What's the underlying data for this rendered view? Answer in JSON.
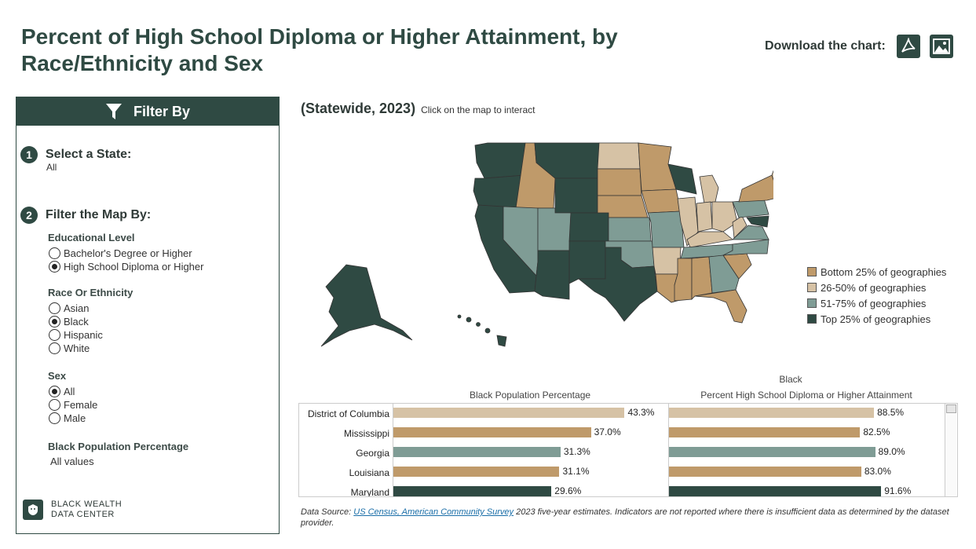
{
  "header": {
    "title": "Percent of High School Diploma or Higher Attainment, by Race/Ethnicity and Sex",
    "download_label": "Download the chart:",
    "download_icons": [
      "pdf-icon",
      "image-icon"
    ]
  },
  "sidebar": {
    "heading": "Filter By",
    "heading_icon": "funnel-icon",
    "step1": {
      "number": "1",
      "label": "Select a State:",
      "value": "All"
    },
    "step2": {
      "number": "2",
      "label": "Filter the Map By:"
    },
    "educational_level": {
      "label": "Educational Level",
      "options": [
        {
          "label": "Bachelor's Degree or Higher",
          "selected": false
        },
        {
          "label": "High School Diploma or Higher",
          "selected": true
        }
      ]
    },
    "race": {
      "label": "Race Or Ethnicity",
      "options": [
        {
          "label": "Asian",
          "selected": false
        },
        {
          "label": "Black",
          "selected": true
        },
        {
          "label": "Hispanic",
          "selected": false
        },
        {
          "label": "White",
          "selected": false
        }
      ]
    },
    "sex": {
      "label": "Sex",
      "options": [
        {
          "label": "All",
          "selected": true
        },
        {
          "label": "Female",
          "selected": false
        },
        {
          "label": "Male",
          "selected": false
        }
      ]
    },
    "population_filter": {
      "label": "Black Population Percentage",
      "value": "All values"
    },
    "logo": {
      "line1": "BLACK WEALTH",
      "line2": "DATA CENTER"
    }
  },
  "main": {
    "subtitle": "(Statewide, 2023)",
    "hint": "Click on the map to interact",
    "legend": [
      {
        "label": "Bottom 25% of geographies",
        "color": "#bf9a6a"
      },
      {
        "label": "26-50% of geographies",
        "color": "#d6c2a5"
      },
      {
        "label": "51-75% of geographies",
        "color": "#7f9c95"
      },
      {
        "label": "Top 25% of geographies",
        "color": "#2f4a43"
      }
    ]
  },
  "chart_data": {
    "type": "bar",
    "group_header": "Black",
    "columns": [
      "Black Population Percentage",
      "Percent High School Diploma or Higher Attainment"
    ],
    "categories": [
      "District of Columbia",
      "Mississippi",
      "Georgia",
      "Louisiana",
      "Maryland"
    ],
    "series": [
      {
        "name": "Black Population Percentage",
        "values": [
          43.3,
          37.0,
          31.3,
          31.1,
          29.6
        ],
        "labels": [
          "43.3%",
          "37.0%",
          "31.3%",
          "31.1%",
          "29.6%"
        ]
      },
      {
        "name": "Percent High School Diploma or Higher Attainment",
        "values": [
          88.5,
          82.5,
          89.0,
          83.0,
          91.6
        ],
        "labels": [
          "88.5%",
          "82.5%",
          "89.0%",
          "83.0%",
          "91.6%"
        ]
      }
    ],
    "row_colors": [
      "#d6c2a5",
      "#bf9a6a",
      "#7f9c95",
      "#bf9a6a",
      "#2f4a43"
    ],
    "xlim_left": [
      0,
      50
    ],
    "xlim_right": [
      0,
      100
    ]
  },
  "footer": {
    "prefix": "Data Source: ",
    "link_text": "US Census, American Community Survey",
    "suffix": " 2023 five-year estimates. Indicators are not reported where there is insufficient data as determined by the dataset provider."
  }
}
